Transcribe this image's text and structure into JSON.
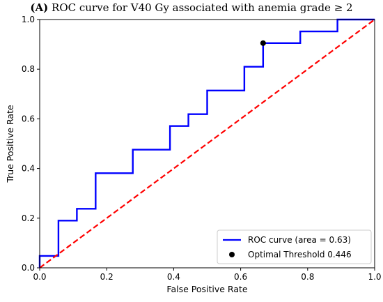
{
  "chart_data": {
    "type": "line",
    "title_prefix": "(A)",
    "title": "ROC curve for V40 Gy associated with anemia grade ≥ 2",
    "xlabel": "False Positive Rate",
    "ylabel": "True Positive Rate",
    "xlim": [
      0.0,
      1.0
    ],
    "ylim": [
      0.0,
      1.0
    ],
    "xticks": [
      "0.0",
      "0.2",
      "0.4",
      "0.6",
      "0.8",
      "1.0"
    ],
    "yticks": [
      "0.0",
      "0.2",
      "0.4",
      "0.6",
      "0.8",
      "1.0"
    ],
    "grid": false,
    "legend_position": "lower-right",
    "series": [
      {
        "name": "ROC curve (area = 0.63)",
        "color": "#0000ff",
        "style": "solid-step",
        "points": [
          [
            0.0,
            0.0
          ],
          [
            0.0,
            0.048
          ],
          [
            0.056,
            0.048
          ],
          [
            0.056,
            0.19
          ],
          [
            0.111,
            0.19
          ],
          [
            0.111,
            0.238
          ],
          [
            0.167,
            0.238
          ],
          [
            0.167,
            0.381
          ],
          [
            0.278,
            0.381
          ],
          [
            0.278,
            0.476
          ],
          [
            0.389,
            0.476
          ],
          [
            0.389,
            0.571
          ],
          [
            0.444,
            0.571
          ],
          [
            0.444,
            0.619
          ],
          [
            0.5,
            0.619
          ],
          [
            0.5,
            0.714
          ],
          [
            0.611,
            0.714
          ],
          [
            0.611,
            0.81
          ],
          [
            0.667,
            0.81
          ],
          [
            0.667,
            0.905
          ],
          [
            0.778,
            0.905
          ],
          [
            0.778,
            0.952
          ],
          [
            0.889,
            0.952
          ],
          [
            0.889,
            1.0
          ],
          [
            1.0,
            1.0
          ]
        ]
      },
      {
        "name": "Chance",
        "legend": false,
        "color": "#ff0000",
        "style": "dashed",
        "points": [
          [
            0.0,
            0.0
          ],
          [
            1.0,
            1.0
          ]
        ]
      }
    ],
    "markers": [
      {
        "name": "Optimal Threshold 0.446",
        "x": 0.667,
        "y": 0.905,
        "color": "#000000"
      }
    ]
  }
}
